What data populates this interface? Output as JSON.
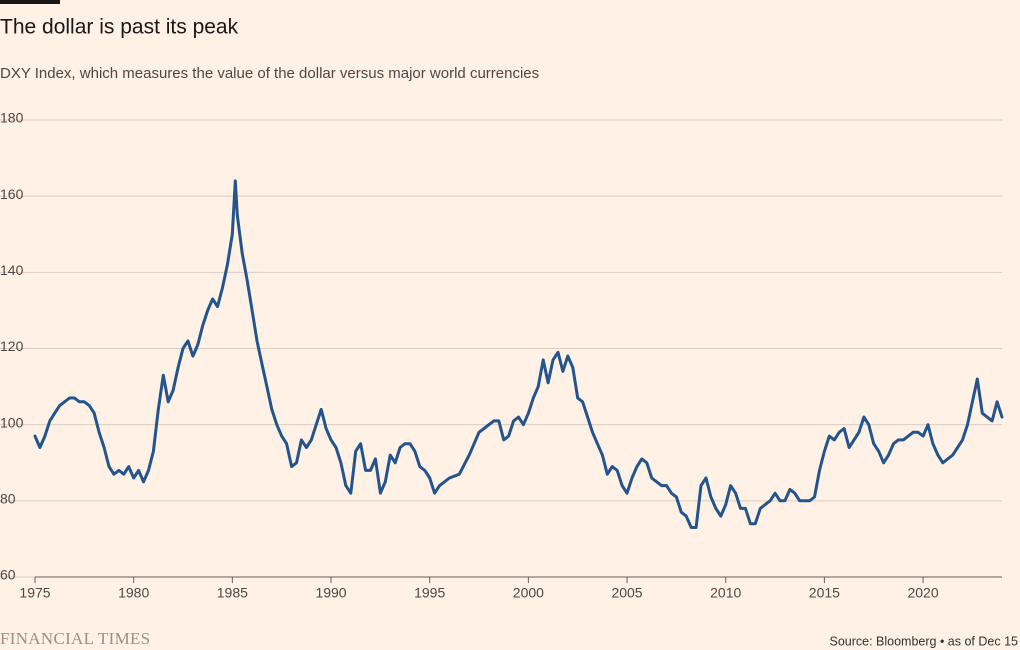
{
  "chart_data": {
    "type": "line",
    "title": "The dollar is past its peak",
    "subtitle": "DXY Index, which measures the value of the dollar versus major world currencies",
    "source": "Source: Bloomberg • as of Dec 15",
    "brand": "FINANCIAL TIMES",
    "color": "#23548c",
    "grid": true,
    "xlim": [
      1975,
      2024
    ],
    "xticks": [
      1975,
      1980,
      1985,
      1990,
      1995,
      2000,
      2005,
      2010,
      2015,
      2020
    ],
    "ylim": [
      60,
      180
    ],
    "yticks": [
      60,
      80,
      100,
      120,
      140,
      160,
      180
    ],
    "x": [
      1975,
      1975.25,
      1975.5,
      1975.75,
      1976,
      1976.25,
      1976.5,
      1976.75,
      1977,
      1977.25,
      1977.5,
      1977.75,
      1978,
      1978.25,
      1978.5,
      1978.75,
      1979,
      1979.25,
      1979.5,
      1979.75,
      1980,
      1980.25,
      1980.5,
      1980.75,
      1981,
      1981.25,
      1981.5,
      1981.75,
      1982,
      1982.25,
      1982.5,
      1982.75,
      1983,
      1983.25,
      1983.5,
      1983.75,
      1984,
      1984.25,
      1984.5,
      1984.75,
      1985,
      1985.15,
      1985.25,
      1985.5,
      1985.75,
      1986,
      1986.25,
      1986.5,
      1986.75,
      1987,
      1987.25,
      1987.5,
      1987.75,
      1988,
      1988.25,
      1988.5,
      1988.75,
      1989,
      1989.25,
      1989.5,
      1989.75,
      1990,
      1990.25,
      1990.5,
      1990.75,
      1991,
      1991.25,
      1991.5,
      1991.75,
      1992,
      1992.25,
      1992.5,
      1992.75,
      1993,
      1993.25,
      1993.5,
      1993.75,
      1994,
      1994.25,
      1994.5,
      1994.75,
      1995,
      1995.25,
      1995.5,
      1995.75,
      1996,
      1996.5,
      1997,
      1997.25,
      1997.5,
      1997.75,
      1998,
      1998.25,
      1998.5,
      1998.75,
      1999,
      1999.25,
      1999.5,
      1999.75,
      2000,
      2000.25,
      2000.5,
      2000.75,
      2001,
      2001.25,
      2001.5,
      2001.75,
      2002,
      2002.25,
      2002.5,
      2002.75,
      2003,
      2003.25,
      2003.5,
      2003.75,
      2004,
      2004.25,
      2004.5,
      2004.75,
      2005,
      2005.25,
      2005.5,
      2005.75,
      2006,
      2006.25,
      2006.5,
      2006.75,
      2007,
      2007.25,
      2007.5,
      2007.75,
      2008,
      2008.25,
      2008.5,
      2008.75,
      2009,
      2009.25,
      2009.5,
      2009.75,
      2010,
      2010.25,
      2010.5,
      2010.75,
      2011,
      2011.25,
      2011.5,
      2011.75,
      2012,
      2012.25,
      2012.5,
      2012.75,
      2013,
      2013.25,
      2013.5,
      2013.75,
      2014,
      2014.25,
      2014.5,
      2014.75,
      2015,
      2015.25,
      2015.5,
      2015.75,
      2016,
      2016.25,
      2016.5,
      2016.75,
      2017,
      2017.25,
      2017.5,
      2017.75,
      2018,
      2018.25,
      2018.5,
      2018.75,
      2019,
      2019.25,
      2019.5,
      2019.75,
      2020,
      2020.25,
      2020.5,
      2020.75,
      2021,
      2021.25,
      2021.5,
      2021.75,
      2022,
      2022.25,
      2022.5,
      2022.75,
      2023,
      2023.25,
      2023.5,
      2023.75,
      2024
    ],
    "values": [
      97,
      94,
      97,
      101,
      103,
      105,
      106,
      107,
      107,
      106,
      106,
      105,
      103,
      98,
      94,
      89,
      87,
      88,
      87,
      89,
      86,
      88,
      85,
      88,
      93,
      104,
      113,
      106,
      109,
      115,
      120,
      122,
      118,
      121,
      126,
      130,
      133,
      131,
      136,
      142,
      150,
      164,
      155,
      145,
      138,
      130,
      122,
      116,
      110,
      104,
      100,
      97,
      95,
      89,
      90,
      96,
      94,
      96,
      100,
      104,
      99,
      96,
      94,
      90,
      84,
      82,
      93,
      95,
      88,
      88,
      91,
      82,
      85,
      92,
      90,
      94,
      95,
      95,
      93,
      89,
      88,
      86,
      82,
      84,
      85,
      86,
      87,
      92,
      95,
      98,
      99,
      100,
      101,
      101,
      96,
      97,
      101,
      102,
      100,
      103,
      107,
      110,
      117,
      111,
      117,
      119,
      114,
      118,
      115,
      107,
      106,
      102,
      98,
      95,
      92,
      87,
      89,
      88,
      84,
      82,
      86,
      89,
      91,
      90,
      86,
      85,
      84,
      84,
      82,
      81,
      77,
      76,
      73,
      73,
      84,
      86,
      81,
      78,
      76,
      79,
      84,
      82,
      78,
      78,
      74,
      74,
      78,
      79,
      80,
      82,
      80,
      80,
      83,
      82,
      80,
      80,
      80,
      81,
      88,
      93,
      97,
      96,
      98,
      99,
      94,
      96,
      98,
      102,
      100,
      95,
      93,
      90,
      92,
      95,
      96,
      96,
      97,
      98,
      98,
      97,
      100,
      95,
      92,
      90,
      91,
      92,
      94,
      96,
      100,
      106,
      112,
      103,
      102,
      101,
      106,
      102
    ]
  }
}
